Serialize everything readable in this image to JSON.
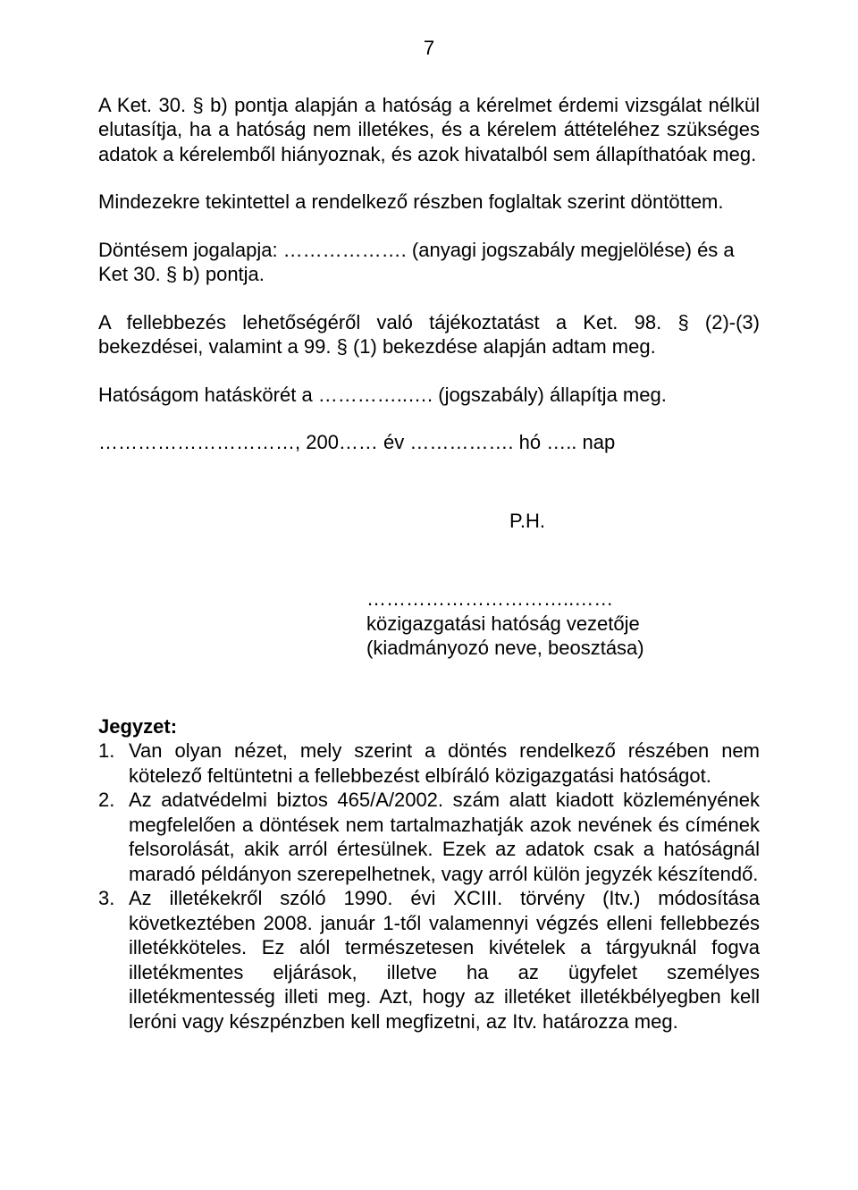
{
  "page_number": "7",
  "paragraphs": {
    "p1": "A Ket. 30. § b) pontja alapján a hatóság a kérelmet érdemi vizsgálat nélkül elutasítja, ha a hatóság nem illetékes, és a kérelem áttételéhez szükséges adatok a kérelemből hiányoznak, és azok hivatalból sem állapíthatóak meg.",
    "p2": "Mindezekre tekintettel a rendelkező részben foglaltak szerint döntöttem.",
    "p3": "Döntésem jogalapja: ………………. (anyagi jogszabály megjelölése) és a Ket 30. § b) pontja.",
    "p4": "A fellebbezés lehetőségéről való tájékoztatást a Ket. 98. § (2)-(3) bekezdései, valamint a 99. § (1) bekezdése alapján adtam meg.",
    "p5": "Hatóságom hatáskörét a …………..…. (jogszabály) állapítja meg.",
    "date_line": "…………………………, 200…… év ……………. hó ….. nap"
  },
  "ph": "P.H.",
  "signature": {
    "dots": "…………………………..……",
    "line1": "közigazgatási hatóság vezetője",
    "line2": "(kiadmányozó neve, beosztása)"
  },
  "notes": {
    "heading": "Jegyzet:",
    "items": {
      "n1_num": "1.",
      "n1_text": "Van olyan nézet, mely szerint a döntés rendelkező részében nem kötelező feltüntetni a fellebbezést elbíráló közigazgatási hatóságot.",
      "n2_num": "2.",
      "n2_text": "Az adatvédelmi biztos 465/A/2002. szám alatt kiadott közleményének megfelelően a döntések nem tartalmazhatják azok nevének és címének felsorolását, akik arról értesülnek. Ezek az adatok csak a hatóságnál maradó példányon szerepelhetnek, vagy arról külön jegyzék készítendő.",
      "n3_num": "3.",
      "n3_text": "Az illetékekről szóló 1990. évi XCIII. törvény (Itv.) módosítása következtében 2008. január 1-től valamennyi végzés elleni fellebbezés illetékköteles. Ez alól természetesen kivételek a tárgyuknál fogva illetékmentes eljárások, illetve ha az ügyfelet személyes illetékmentesség illeti meg. Azt, hogy az illetéket illetékbélyegben kell leróni vagy készpénzben kell megfizetni, az Itv. határozza meg."
    }
  }
}
